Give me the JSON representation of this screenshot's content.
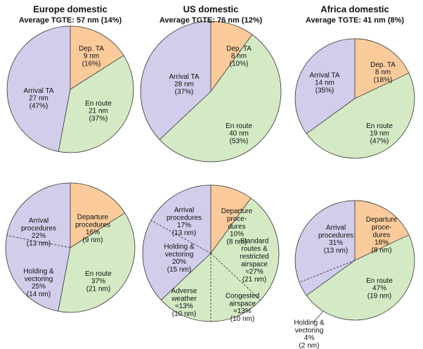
{
  "chart_data": [
    {
      "type": "pie",
      "title": "Europe domestic",
      "subtitle": "Average TGTE: 57 nm (14%)",
      "categories": [
        "Dep. TA",
        "En route",
        "Arrival TA"
      ],
      "values": [
        16,
        37,
        47
      ],
      "value_labels": [
        "(16%)",
        "(37%)",
        "(47%)"
      ],
      "distance_labels": [
        "9 nm",
        "21 nm",
        "27 nm"
      ],
      "colors": [
        "#fbcb9c",
        "#d3eac4",
        "#d2cdeb"
      ]
    },
    {
      "type": "pie",
      "title": "US domestic",
      "subtitle": "Average TGTE: 76 nm (12%)",
      "categories": [
        "Dep. TA",
        "En route",
        "Arrival TA"
      ],
      "values": [
        10,
        53,
        37
      ],
      "value_labels": [
        "(10%)",
        "(53%)",
        "(37%)"
      ],
      "distance_labels": [
        "8 nm",
        "40 nm",
        "28 nm"
      ],
      "colors": [
        "#fbcb9c",
        "#d3eac4",
        "#d2cdeb"
      ]
    },
    {
      "type": "pie",
      "title": "Africa domestic",
      "subtitle": "Average TGTE: 41 nm (8%)",
      "categories": [
        "Dep. TA",
        "En route",
        "Arrival TA"
      ],
      "values": [
        18,
        47,
        35
      ],
      "value_labels": [
        "(18%)",
        "(47%)",
        "(35%)"
      ],
      "distance_labels": [
        "8 nm",
        "19 nm",
        "14 nm"
      ],
      "colors": [
        "#fbcb9c",
        "#d3eac4",
        "#d2cdeb"
      ]
    },
    {
      "type": "pie",
      "categories": [
        "Departure\nprocedures",
        "En route",
        "Holding &\nvectoring",
        "Arrival\nprocedures"
      ],
      "values": [
        16,
        37,
        25,
        22
      ],
      "value_labels": [
        "16%",
        "37%",
        "25%",
        "22%"
      ],
      "distance_labels": [
        "(9 nm)",
        "(21 nm)",
        "(14 nm)",
        "(13 nm)"
      ],
      "colors": [
        "#fbcb9c",
        "#d3eac4",
        "#d2cdeb",
        "#d2cdeb"
      ]
    },
    {
      "type": "pie",
      "categories": [
        "Departure\nproce-\ndures",
        "Standard\nroutes &\nrestricted\nairspace",
        "Congested\nairspace",
        "Adverse\nweather",
        "Holding &\nvectoring",
        "Arrival\nprocedures"
      ],
      "values": [
        10,
        27,
        13,
        13,
        20,
        17
      ],
      "value_labels": [
        "10%",
        "≈27%",
        "≈13%",
        "≈13%",
        "20%",
        "17%"
      ],
      "distance_labels": [
        "(8 nm)",
        "(21 nm)",
        "(10 nm)",
        "(10 nm)",
        "(15 nm)",
        "(13 nm)"
      ],
      "colors": [
        "#fbcb9c",
        "#d3eac4",
        "#d3eac4",
        "#d3eac4",
        "#d2cdeb",
        "#d2cdeb"
      ]
    },
    {
      "type": "pie",
      "categories": [
        "Departure\nproce-\ndures",
        "En route",
        "Holding &\nvectoring",
        "Arrival\nprocedures"
      ],
      "values": [
        18,
        47,
        4,
        31
      ],
      "value_labels": [
        "18%",
        "47%",
        "4%",
        "31%"
      ],
      "distance_labels": [
        "(8 nm)",
        "(19 nm)",
        "(2 nm)",
        "(13 nm)"
      ],
      "colors": [
        "#fbcb9c",
        "#d3eac4",
        "#d2cdeb",
        "#d2cdeb"
      ]
    }
  ]
}
